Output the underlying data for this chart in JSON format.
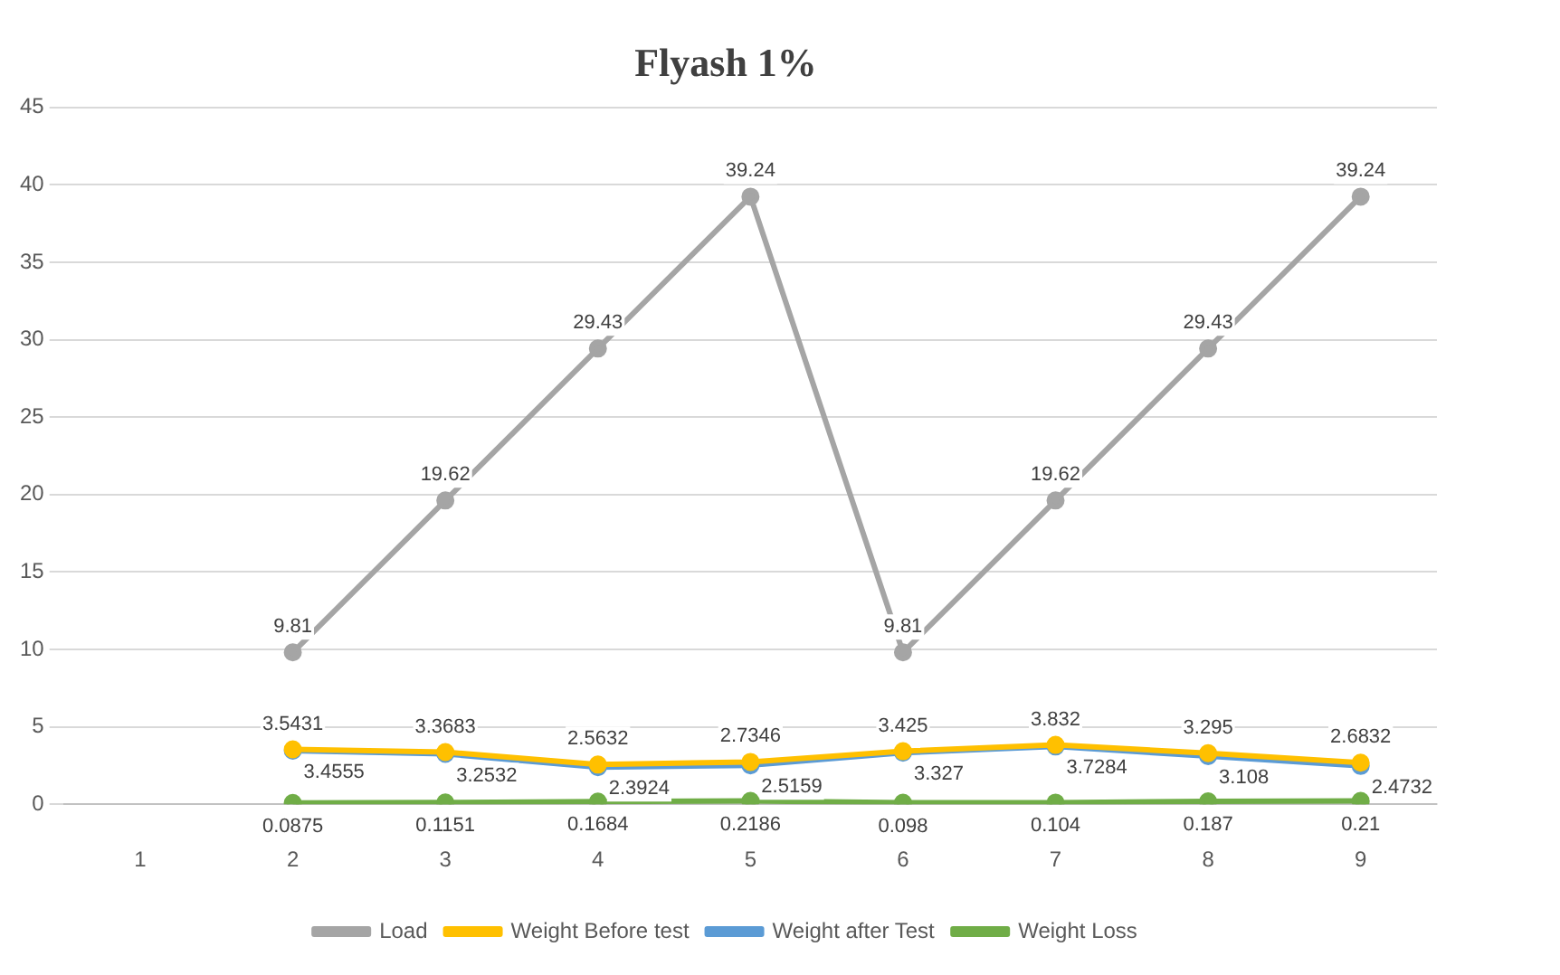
{
  "chart_data": {
    "type": "line",
    "title": "Flyash 1%",
    "categories": [
      "1",
      "2",
      "3",
      "4",
      "5",
      "6",
      "7",
      "8",
      "9"
    ],
    "series": [
      {
        "name": "Load",
        "color": "#a5a5a5",
        "values": [
          null,
          9.81,
          19.62,
          29.43,
          39.24,
          9.81,
          19.62,
          29.43,
          39.24
        ]
      },
      {
        "name": "Weight Before test",
        "color": "#ffc000",
        "values": [
          null,
          3.5431,
          3.3683,
          2.5632,
          2.7346,
          3.425,
          3.832,
          3.295,
          2.6832
        ]
      },
      {
        "name": "Weight after Test",
        "color": "#5b9bd5",
        "values": [
          null,
          3.4555,
          3.2532,
          2.3924,
          2.5159,
          3.327,
          3.7284,
          3.108,
          2.4732
        ]
      },
      {
        "name": "Weight Loss",
        "color": "#70ad47",
        "values": [
          null,
          0.0875,
          0.1151,
          0.1684,
          0.2186,
          0.098,
          0.104,
          0.187,
          0.21
        ]
      }
    ],
    "ylim": [
      0,
      45
    ],
    "yticks": [
      0,
      5,
      10,
      15,
      20,
      25,
      30,
      35,
      40,
      45
    ],
    "grid": "y",
    "legend": "bottom",
    "marker": "circle",
    "line_style": "solid",
    "data_labels": true
  }
}
